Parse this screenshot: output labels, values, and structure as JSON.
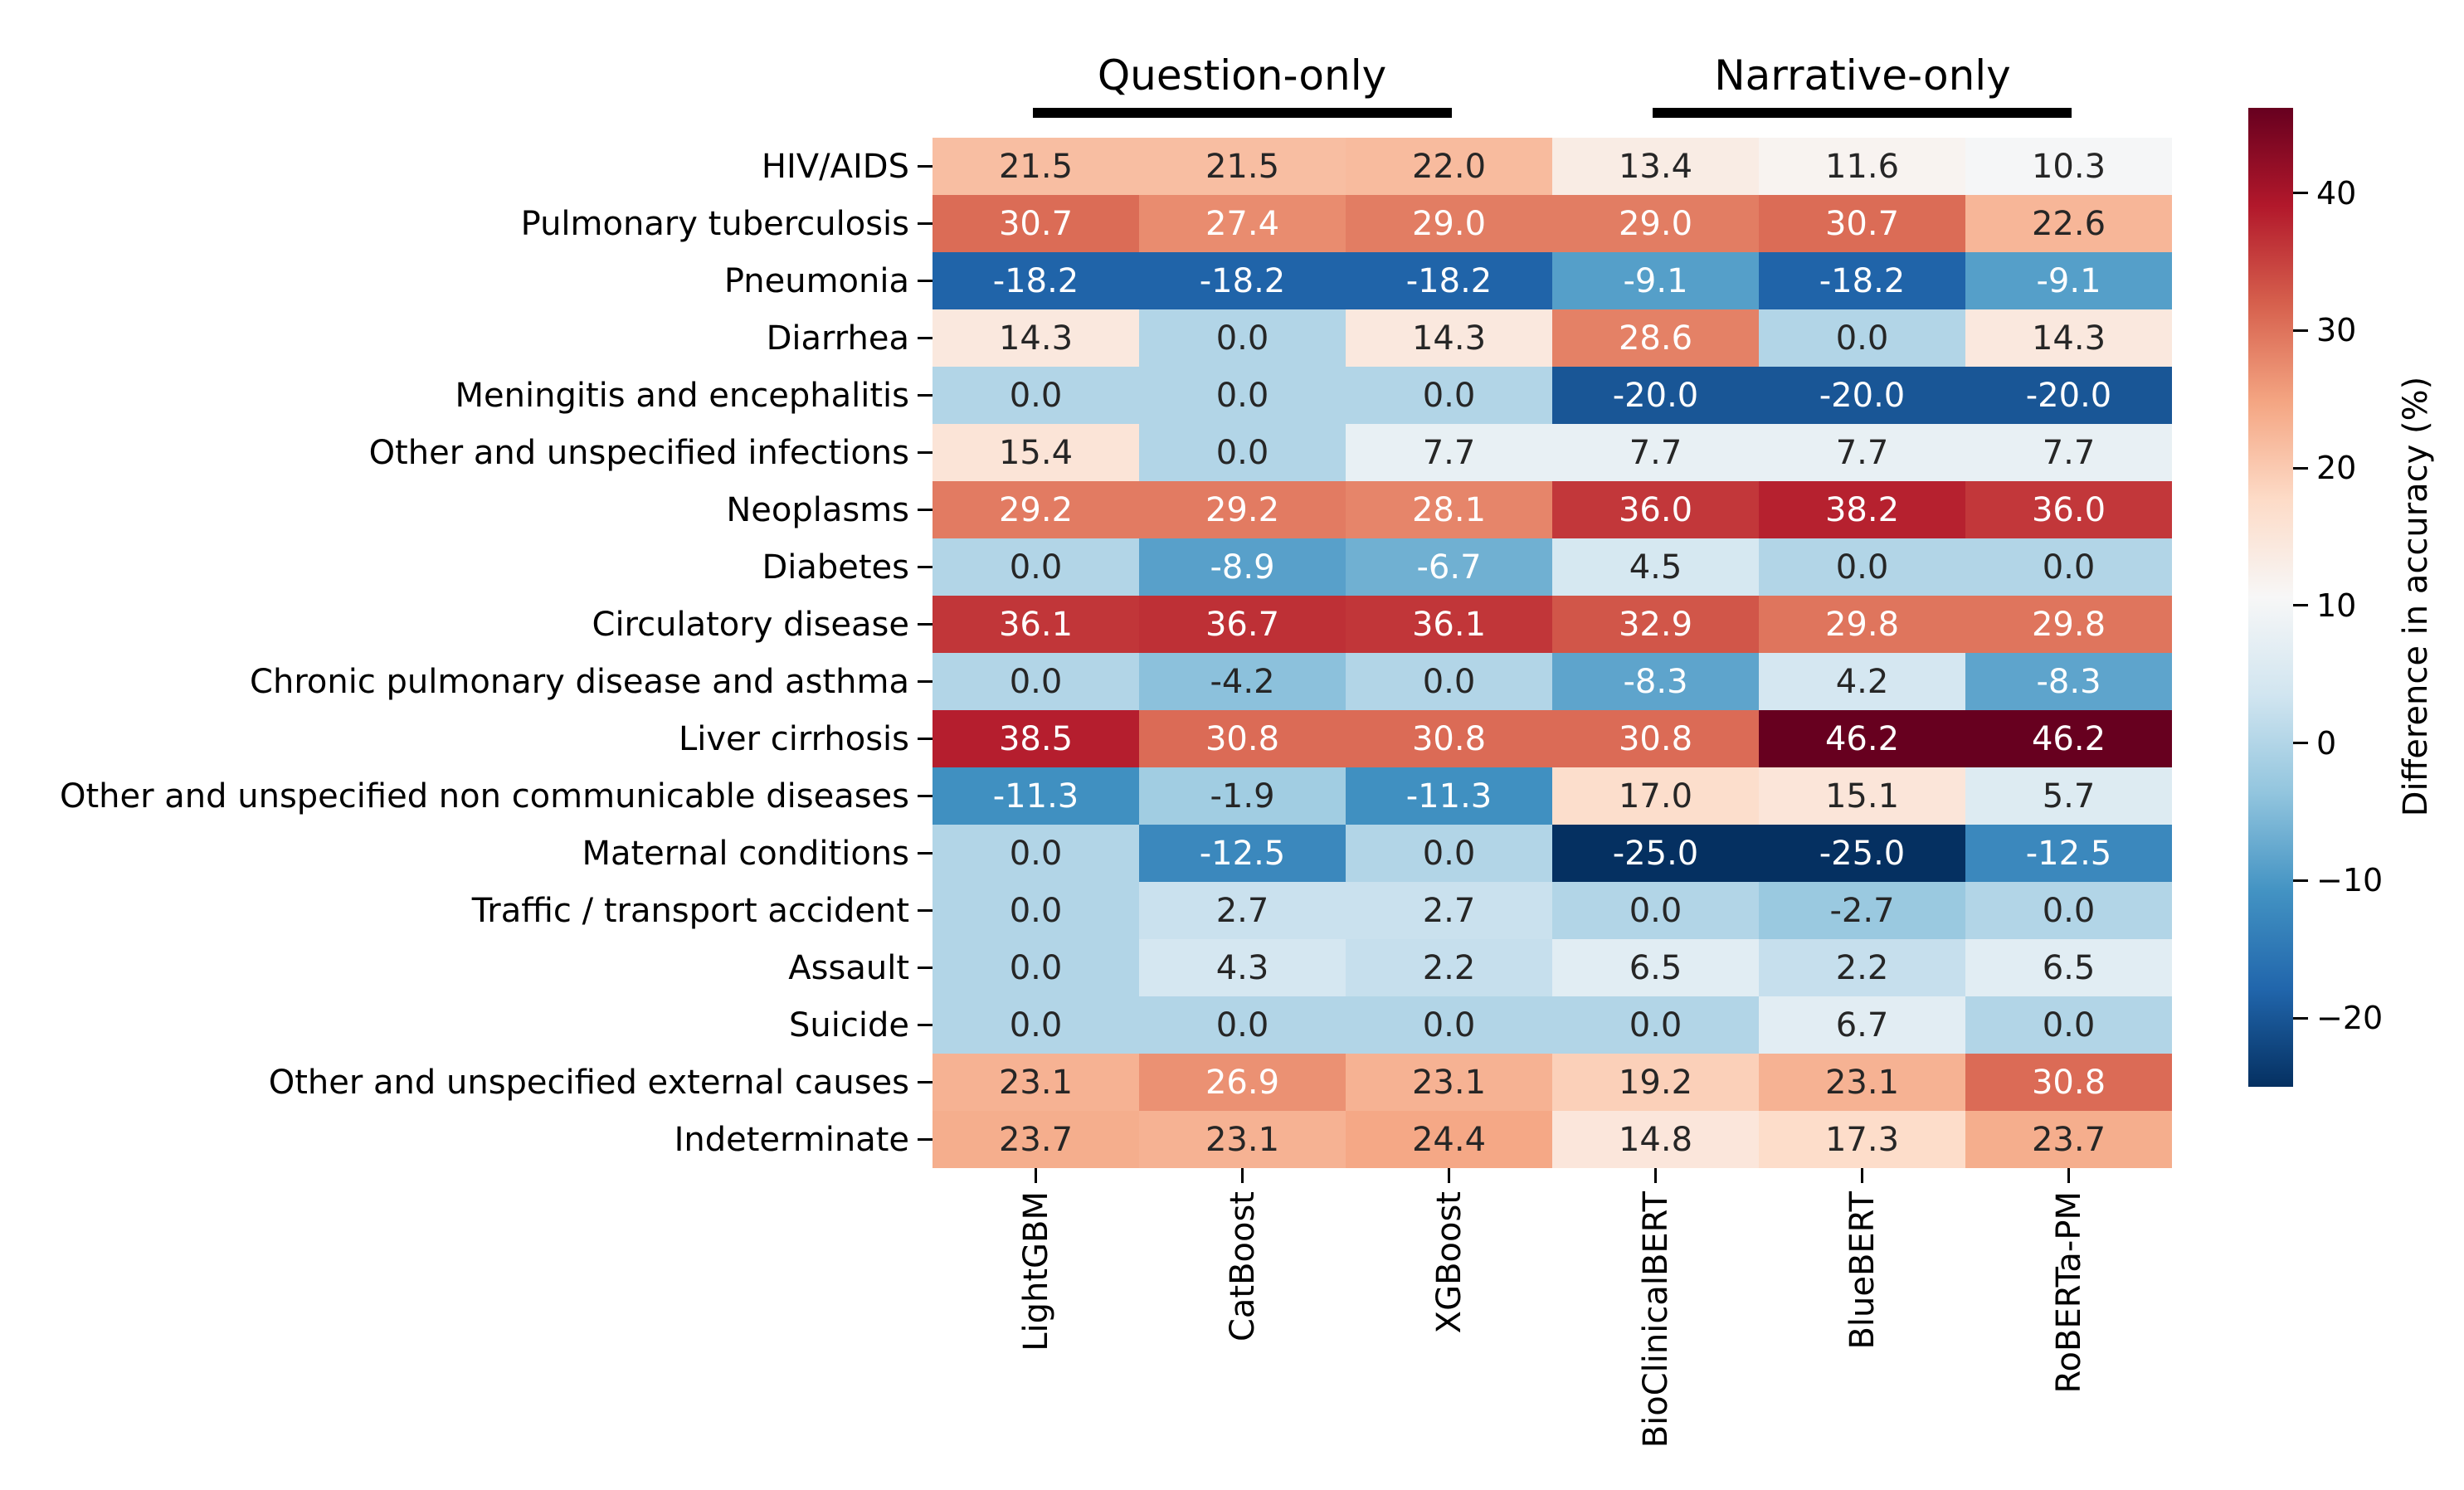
{
  "chart_data": {
    "type": "heatmap",
    "title": "",
    "title_groups": [
      "Question-only",
      "Narrative-only"
    ],
    "column_groups": [
      {
        "label": "Question-only",
        "columns": [
          0,
          1,
          2
        ]
      },
      {
        "label": "Narrative-only",
        "columns": [
          3,
          4,
          5
        ]
      }
    ],
    "columns": [
      "LightGBM",
      "CatBoost",
      "XGBoost",
      "BioClinicalBERT",
      "BlueBERT",
      "RoBERTa-PM"
    ],
    "rows": [
      "HIV/AIDS",
      "Pulmonary tuberculosis",
      "Pneumonia",
      "Diarrhea",
      "Meningitis and encephalitis",
      "Other and unspecified infections",
      "Neoplasms",
      "Diabetes",
      "Circulatory disease",
      "Chronic pulmonary disease and asthma",
      "Liver cirrhosis",
      "Other and unspecified non communicable diseases",
      "Maternal conditions",
      "Traffic / transport accident",
      "Assault",
      "Suicide",
      "Other and unspecified external causes",
      "Indeterminate"
    ],
    "values": [
      [
        21.5,
        21.5,
        22.0,
        13.4,
        11.6,
        10.3
      ],
      [
        30.7,
        27.4,
        29.0,
        29.0,
        30.7,
        22.6
      ],
      [
        -18.2,
        -18.2,
        -18.2,
        -9.1,
        -18.2,
        -9.1
      ],
      [
        14.3,
        0.0,
        14.3,
        28.6,
        0.0,
        14.3
      ],
      [
        0.0,
        0.0,
        0.0,
        -20.0,
        -20.0,
        -20.0
      ],
      [
        15.4,
        0.0,
        7.7,
        7.7,
        7.7,
        7.7
      ],
      [
        29.2,
        29.2,
        28.1,
        36.0,
        38.2,
        36.0
      ],
      [
        0.0,
        -8.9,
        -6.7,
        4.5,
        0.0,
        0.0
      ],
      [
        36.1,
        36.7,
        36.1,
        32.9,
        29.8,
        29.8
      ],
      [
        0.0,
        -4.2,
        0.0,
        -8.3,
        4.2,
        -8.3
      ],
      [
        38.5,
        30.8,
        30.8,
        30.8,
        46.2,
        46.2
      ],
      [
        -11.3,
        -1.9,
        -11.3,
        17.0,
        15.1,
        5.7
      ],
      [
        0.0,
        -12.5,
        0.0,
        -25.0,
        -25.0,
        -12.5
      ],
      [
        0.0,
        2.7,
        2.7,
        0.0,
        -2.7,
        0.0
      ],
      [
        0.0,
        4.3,
        2.2,
        6.5,
        2.2,
        6.5
      ],
      [
        0.0,
        0.0,
        0.0,
        0.0,
        6.7,
        0.0
      ],
      [
        23.1,
        26.9,
        23.1,
        19.2,
        23.1,
        30.8
      ],
      [
        23.7,
        23.1,
        24.4,
        14.8,
        17.3,
        23.7
      ]
    ],
    "value_decimals": 1,
    "colorbar": {
      "label": "Difference in accuracy (%)",
      "ticks": [
        {
          "value": 40,
          "label": "40"
        },
        {
          "value": 30,
          "label": "30"
        },
        {
          "value": 20,
          "label": "20"
        },
        {
          "value": 10,
          "label": "10"
        },
        {
          "value": 0,
          "label": "0"
        },
        {
          "value": -10,
          "label": "−10"
        },
        {
          "value": -20,
          "label": "−20"
        }
      ],
      "vmin": -25.0,
      "vmax": 46.2,
      "colormap": "RdBu_r",
      "stops_vmin_to_vmax": [
        "#053061",
        "#2166ac",
        "#4393c3",
        "#92c5de",
        "#d1e5f0",
        "#f7f7f7",
        "#fddbc7",
        "#f4a582",
        "#d6604d",
        "#b2182b",
        "#67001f"
      ]
    },
    "annotation_text_colors": {
      "dark": "#262626",
      "light": "#ffffff"
    },
    "grid": false,
    "legend_position": "right-colorbar"
  }
}
